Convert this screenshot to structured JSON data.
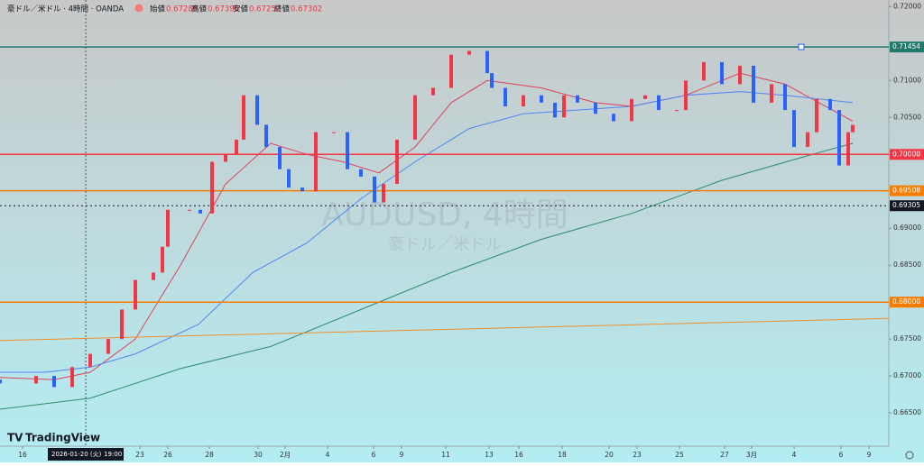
{
  "header": {
    "symbol": "豪ドル／米ドル · 4時間 · OANDA",
    "open_label": "始値",
    "open": "0.67286",
    "high_label": "高値",
    "high": "0.67390",
    "low_label": "安値",
    "low": "0.67252",
    "close_label": "終値",
    "close": "0.67302"
  },
  "watermark": {
    "title": "AUDUSD, 4時間",
    "subtitle": "豪ドル／米ドル"
  },
  "logo": "TradingView",
  "crosshair": {
    "x": 19,
    "date": "2026-01-20 (火)",
    "time": "19:00"
  },
  "chart_data": {
    "type": "candlestick",
    "up_color": "#f23645",
    "down_color": "#2962ff",
    "xlim": [
      0,
      197
    ],
    "ylim": [
      0.6605,
      0.7209
    ],
    "xticks": [
      {
        "value": 5,
        "label": "16"
      },
      {
        "value": 31,
        "label": "23"
      },
      {
        "value": 37.2,
        "label": "26"
      },
      {
        "value": 46.4,
        "label": "28"
      },
      {
        "value": 57.2,
        "label": "30"
      },
      {
        "value": 63.2,
        "label": "2月"
      },
      {
        "value": 72.6,
        "label": "4"
      },
      {
        "value": 82.8,
        "label": "6"
      },
      {
        "value": 89,
        "label": "9"
      },
      {
        "value": 98.8,
        "label": "11"
      },
      {
        "value": 108.4,
        "label": "13"
      },
      {
        "value": 115,
        "label": "16"
      },
      {
        "value": 124.6,
        "label": "18"
      },
      {
        "value": 135,
        "label": "20"
      },
      {
        "value": 141.2,
        "label": "23"
      },
      {
        "value": 150.6,
        "label": "25"
      },
      {
        "value": 160.6,
        "label": "27"
      },
      {
        "value": 166.6,
        "label": "3月"
      },
      {
        "value": 176,
        "label": "4"
      },
      {
        "value": 186.4,
        "label": "6"
      },
      {
        "value": 192.6,
        "label": "9"
      }
    ],
    "yticks": [
      {
        "value": 0.72,
        "label": "0.72000"
      },
      {
        "value": 0.71,
        "label": "0.71000"
      },
      {
        "value": 0.705,
        "label": "0.70500"
      },
      {
        "value": 0.69,
        "label": "0.69000"
      },
      {
        "value": 0.685,
        "label": "0.68500"
      },
      {
        "value": 0.675,
        "label": "0.67500"
      },
      {
        "value": 0.67,
        "label": "0.67000"
      },
      {
        "value": 0.665,
        "label": "0.66500"
      }
    ],
    "candles": {
      "x": [
        0,
        8,
        12,
        16,
        20,
        24,
        27,
        30,
        34,
        36,
        37.2,
        42,
        44.4,
        47,
        50,
        52.4,
        54,
        57,
        59,
        62,
        64,
        67,
        70,
        74,
        77,
        80,
        83,
        85,
        88,
        92,
        96,
        100,
        104,
        108,
        109,
        112,
        116,
        120,
        123,
        125,
        128,
        132,
        136,
        140,
        143,
        146,
        150,
        152,
        156,
        160,
        164,
        167,
        171,
        174,
        176,
        179,
        181,
        184,
        186,
        188,
        189
      ],
      "open": [
        0.6695,
        0.669,
        0.67,
        0.6685,
        0.6712,
        0.673,
        0.675,
        0.679,
        0.683,
        0.684,
        0.6875,
        0.6925,
        0.6925,
        0.692,
        0.699,
        0.7,
        0.702,
        0.708,
        0.704,
        0.701,
        0.698,
        0.6955,
        0.695,
        0.703,
        0.703,
        0.698,
        0.697,
        0.6935,
        0.696,
        0.702,
        0.708,
        0.709,
        0.7135,
        0.714,
        0.711,
        0.709,
        0.7065,
        0.708,
        0.707,
        0.705,
        0.708,
        0.707,
        0.7055,
        0.7045,
        0.7075,
        0.708,
        0.706,
        0.706,
        0.71,
        0.7125,
        0.7095,
        0.712,
        0.707,
        0.7095,
        0.706,
        0.701,
        0.703,
        0.7075,
        0.706,
        0.6985,
        0.703
      ],
      "close": [
        0.669,
        0.67,
        0.6685,
        0.6712,
        0.673,
        0.675,
        0.679,
        0.683,
        0.684,
        0.6875,
        0.6925,
        0.6925,
        0.692,
        0.699,
        0.7,
        0.702,
        0.708,
        0.704,
        0.701,
        0.698,
        0.6955,
        0.695,
        0.703,
        0.703,
        0.698,
        0.697,
        0.6935,
        0.696,
        0.702,
        0.708,
        0.709,
        0.7135,
        0.714,
        0.711,
        0.709,
        0.7065,
        0.708,
        0.707,
        0.705,
        0.708,
        0.707,
        0.7055,
        0.7045,
        0.7075,
        0.708,
        0.706,
        0.706,
        0.71,
        0.7125,
        0.7095,
        0.712,
        0.707,
        0.7095,
        0.706,
        0.701,
        0.703,
        0.7075,
        0.706,
        0.6985,
        0.703,
        0.704
      ]
    },
    "lines": [
      {
        "color": "#e0405a",
        "x": [
          0,
          12,
          20,
          30,
          40,
          50,
          60,
          68,
          76,
          84,
          92,
          100,
          108,
          120,
          132,
          140,
          152,
          164,
          174,
          189
        ],
        "values": [
          0.6698,
          0.6695,
          0.6705,
          0.675,
          0.685,
          0.696,
          0.7015,
          0.7,
          0.699,
          0.6975,
          0.701,
          0.707,
          0.71,
          0.709,
          0.707,
          0.7065,
          0.708,
          0.711,
          0.7095,
          0.7045
        ]
      },
      {
        "color": "#4f86f7",
        "x": [
          0,
          10,
          20,
          30,
          44,
          56,
          68,
          80,
          92,
          104,
          116,
          128,
          140,
          152,
          164,
          174,
          189
        ],
        "values": [
          0.6705,
          0.6705,
          0.6712,
          0.673,
          0.677,
          0.684,
          0.688,
          0.694,
          0.699,
          0.7035,
          0.7055,
          0.706,
          0.7065,
          0.708,
          0.7085,
          0.708,
          0.707
        ]
      },
      {
        "color": "#2e8b6e",
        "x": [
          0,
          20,
          40,
          60,
          80,
          100,
          120,
          140,
          160,
          180,
          189
        ],
        "values": [
          0.6655,
          0.667,
          0.671,
          0.674,
          0.679,
          0.684,
          0.6885,
          0.692,
          0.6965,
          0.7,
          0.7015
        ]
      },
      {
        "color": "#f0902a",
        "x": [
          0,
          197
        ],
        "values": [
          0.6748,
          0.6778
        ]
      }
    ],
    "levels": [
      {
        "value": 0.71454,
        "label": "0.71454",
        "color": "#1f7a6b"
      },
      {
        "value": 0.7,
        "label": "0.70000",
        "color": "#f23645"
      },
      {
        "value": 0.69508,
        "label": "0.69508",
        "color": "#f57c00"
      },
      {
        "value": 0.68,
        "label": "0.68000",
        "color": "#f57c00"
      },
      {
        "value": 0.69305,
        "label": "0.69305",
        "color": "#131722"
      }
    ]
  }
}
